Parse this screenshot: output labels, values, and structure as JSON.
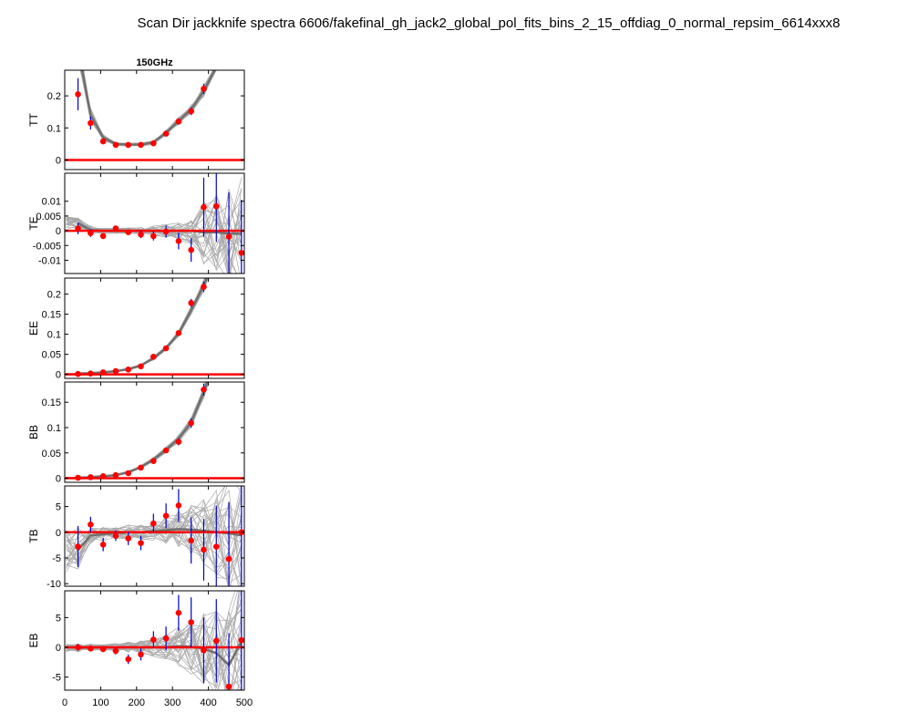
{
  "title": "Scan Dir jackknife spectra 6606/fakefinal_gh_jack2_global_pol_fits_bins_2_15_offdiag_0_normal_repsim_6614xxx8",
  "chart_data": {
    "type": "line",
    "frequency_label": "150GHz",
    "xlim": [
      0,
      500
    ],
    "xticks": [
      0,
      100,
      200,
      300,
      400,
      500
    ],
    "xtick_labels": [
      "0",
      "100",
      "200",
      "300",
      "400",
      "500"
    ],
    "ell": [
      37,
      72,
      107,
      142,
      177,
      212,
      247,
      282,
      317,
      352,
      387,
      422,
      457,
      492
    ],
    "colors": {
      "data": "#ff0000",
      "errorbar": "#0000cc",
      "sims": "#a9a9a9",
      "mean": "#707070",
      "zero": "#ff0000"
    },
    "panels": [
      {
        "ylabel": "TT",
        "ylim": [
          -0.03,
          0.28
        ],
        "yticks": [
          0,
          0.1,
          0.2
        ],
        "ytick_labels": [
          "0",
          "0.1",
          "0.2"
        ],
        "values": [
          0.205,
          0.115,
          0.058,
          0.047,
          0.047,
          0.047,
          0.052,
          0.082,
          0.12,
          0.152,
          0.222,
          null,
          null,
          null
        ],
        "errors": [
          0.05,
          0.02,
          0.008,
          0.005,
          0.005,
          0.005,
          0.006,
          0.008,
          0.01,
          0.012,
          0.016,
          null,
          null,
          null
        ],
        "mean": [
          0.35,
          0.14,
          0.07,
          0.05,
          0.048,
          0.048,
          0.055,
          0.085,
          0.122,
          0.158,
          0.215,
          0.29,
          0.32,
          0.36
        ],
        "spread": 0.01
      },
      {
        "ylabel": "TE",
        "ylim": [
          -0.0145,
          0.0195
        ],
        "yticks": [
          -0.01,
          -0.005,
          0,
          0.005,
          0.01
        ],
        "ytick_labels": [
          "-0.01",
          "-0.005",
          "0",
          "0.005",
          "0.01"
        ],
        "values": [
          0.0008,
          -0.0008,
          -0.0018,
          0.0008,
          -0.0005,
          -0.0013,
          -0.0018,
          -0.0003,
          -0.0035,
          -0.0065,
          0.008,
          0.0083,
          -0.002,
          -0.0075
        ],
        "errors": [
          0.002,
          0.0013,
          0.0009,
          0.0008,
          0.0009,
          0.0012,
          0.0015,
          0.002,
          0.0028,
          0.004,
          0.01,
          0.012,
          0.015,
          0.018
        ],
        "mean": [
          0.0025,
          0.0003,
          0,
          0,
          0,
          0,
          0,
          0,
          0,
          0,
          -0.0005,
          -0.0005,
          -0.001,
          -0.001
        ],
        "spread": 0.0025
      },
      {
        "ylabel": "EE",
        "ylim": [
          -0.01,
          0.24
        ],
        "yticks": [
          0,
          0.05,
          0.1,
          0.15,
          0.2
        ],
        "ytick_labels": [
          "0",
          "0.05",
          "0.1",
          "0.15",
          "0.2"
        ],
        "values": [
          0.001,
          0.002,
          0.005,
          0.008,
          0.012,
          0.02,
          0.044,
          0.065,
          0.103,
          0.178,
          0.218,
          null,
          null,
          null
        ],
        "errors": [
          0.001,
          0.001,
          0.002,
          0.002,
          0.002,
          0.003,
          0.004,
          0.005,
          0.007,
          0.01,
          0.013,
          null,
          null,
          null
        ],
        "mean": [
          0.002,
          0.003,
          0.005,
          0.008,
          0.013,
          0.022,
          0.04,
          0.066,
          0.102,
          0.16,
          0.222,
          0.3,
          0.38,
          0.46
        ],
        "spread": 0.004
      },
      {
        "ylabel": "BB",
        "ylim": [
          -0.008,
          0.19
        ],
        "yticks": [
          0,
          0.05,
          0.1,
          0.15
        ],
        "ytick_labels": [
          "0",
          "0.05",
          "0.1",
          "0.15"
        ],
        "values": [
          0.001,
          0.002,
          0.004,
          0.006,
          0.01,
          0.021,
          0.034,
          0.055,
          0.072,
          0.109,
          0.175,
          null,
          null,
          null
        ],
        "errors": [
          0.001,
          0.001,
          0.001,
          0.002,
          0.002,
          0.003,
          0.004,
          0.005,
          0.007,
          0.009,
          0.012,
          null,
          null,
          null
        ],
        "mean": [
          0.001,
          0.002,
          0.004,
          0.006,
          0.012,
          0.022,
          0.037,
          0.056,
          0.078,
          0.11,
          0.17,
          0.24,
          0.3,
          0.36
        ],
        "spread": 0.003
      },
      {
        "ylabel": "TB",
        "ylim": [
          -10.5,
          9
        ],
        "yticks": [
          -10,
          -5,
          0,
          5
        ],
        "ytick_labels": [
          "-10",
          "-5",
          "0",
          "5"
        ],
        "values": [
          -2.8,
          1.5,
          -2.4,
          -0.7,
          -1.2,
          -2.1,
          1.7,
          3.2,
          5.2,
          -1.6,
          -3.4,
          -2.8,
          -5.2,
          0
        ],
        "errors": [
          4,
          1.5,
          1.3,
          1.0,
          1.3,
          1.4,
          1.9,
          2.4,
          3.2,
          4.5,
          6,
          8,
          11,
          14
        ],
        "mean": [
          -3.5,
          -0.6,
          -0.4,
          -0.2,
          0,
          0,
          0.2,
          0.4,
          0.6,
          0.5,
          0.3,
          0,
          -0.2,
          -0.6
        ],
        "spread": 2
      },
      {
        "ylabel": "EB",
        "ylim": [
          -7.2,
          9.5
        ],
        "yticks": [
          -5,
          0,
          5
        ],
        "ytick_labels": [
          "-5",
          "0",
          "5"
        ],
        "values": [
          0,
          -0.2,
          -0.3,
          -0.6,
          -2,
          -1.2,
          1.3,
          1.5,
          5.8,
          4.2,
          -0.5,
          1.1,
          -6.6,
          1.2
        ],
        "errors": [
          0.6,
          0.5,
          0.5,
          0.6,
          0.8,
          1.0,
          1.4,
          2.0,
          3.0,
          4.2,
          5.5,
          7,
          9,
          11
        ],
        "mean": [
          -0.1,
          0,
          0,
          0,
          0,
          0,
          0,
          0,
          0.2,
          0.1,
          -0.2,
          -1,
          -3,
          1
        ],
        "spread": 1.5
      }
    ]
  }
}
